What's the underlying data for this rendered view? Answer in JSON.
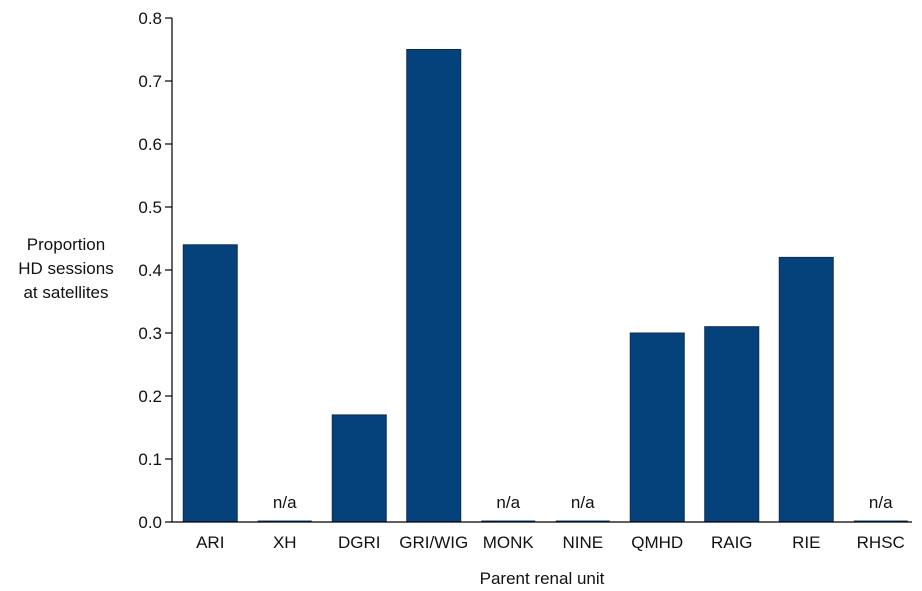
{
  "chart_data": {
    "type": "bar",
    "categories": [
      "ARI",
      "XH",
      "DGRI",
      "GRI/WIG",
      "MONK",
      "NINE",
      "QMHD",
      "RAIG",
      "RIE",
      "RHSC"
    ],
    "values": [
      0.44,
      null,
      0.17,
      0.75,
      null,
      null,
      0.3,
      0.31,
      0.42,
      null
    ],
    "missing_label": "n/a",
    "ylabel_lines": [
      "Proportion",
      "HD sessions",
      "at satellites"
    ],
    "xlabel": "Parent renal unit",
    "ylim": [
      0,
      0.8
    ],
    "yticks": [
      "0.0",
      "0.1",
      "0.2",
      "0.3",
      "0.4",
      "0.5",
      "0.6",
      "0.7",
      "0.8"
    ],
    "grid": false,
    "bar_color": "#05417a"
  }
}
